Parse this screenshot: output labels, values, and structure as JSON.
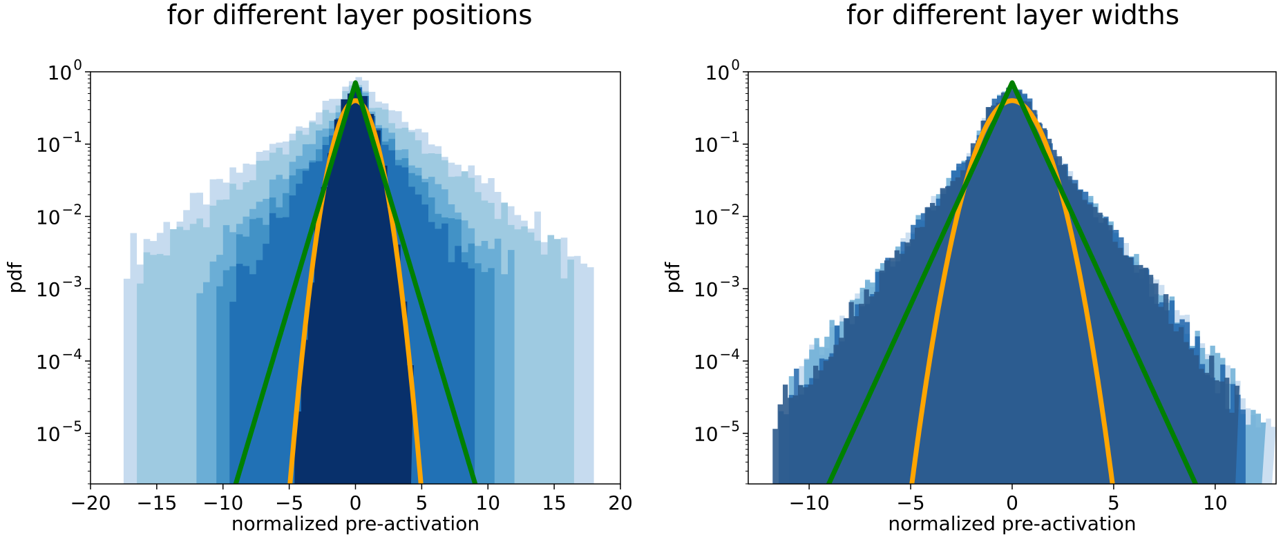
{
  "chart_data": [
    {
      "type": "histogram",
      "title": "for different layer positions",
      "xlabel": "normalized pre-activation",
      "ylabel": "pdf",
      "xlim": [
        -20,
        20
      ],
      "ylim_log10": [
        -5.7,
        0
      ],
      "yscale": "log",
      "xticks": [
        -20,
        -15,
        -10,
        -5,
        0,
        5,
        10,
        15,
        20
      ],
      "xtick_labels": [
        "−20",
        "−15",
        "−10",
        "−5",
        "0",
        "5",
        "10",
        "15",
        "20"
      ],
      "yticks_log10": [
        0,
        -1,
        -2,
        -3,
        -4,
        -5
      ],
      "ytick_labels": [
        {
          "base": "10",
          "exp": "0"
        },
        {
          "base": "10",
          "exp": "−1"
        },
        {
          "base": "10",
          "exp": "−2"
        },
        {
          "base": "10",
          "exp": "−3"
        },
        {
          "base": "10",
          "exp": "−4"
        },
        {
          "base": "10",
          "exp": "−5"
        }
      ],
      "histograms": [
        {
          "color": "#c6dbef",
          "opacity": 1,
          "range": [
            -17.5,
            18.0
          ],
          "scale": 3.3,
          "peak": 0.85
        },
        {
          "color": "#9ecae1",
          "opacity": 1,
          "range": [
            -16.5,
            16.5
          ],
          "scale": 3.0,
          "peak": 0.7
        },
        {
          "color": "#6baed6",
          "opacity": 1,
          "range": [
            -12.0,
            12.0
          ],
          "scale": 2.2,
          "peak": 0.6
        },
        {
          "color": "#4292c6",
          "opacity": 1,
          "range": [
            -10.5,
            10.5
          ],
          "scale": 1.9,
          "peak": 0.55
        },
        {
          "color": "#2171b5",
          "opacity": 1,
          "range": [
            -9.5,
            9.0
          ],
          "scale": 1.6,
          "peak": 0.55
        },
        {
          "color": "#08306b",
          "opacity": 1,
          "range": [
            -4.6,
            4.2
          ],
          "scale": 0.0,
          "peak": 0.5
        }
      ],
      "curves": [
        {
          "name": "",
          "kind": "gaussian",
          "color": "#ffa500",
          "sigma": 1.0
        },
        {
          "name": "",
          "kind": "laplace",
          "color": "#008000",
          "b": 0.707
        }
      ]
    },
    {
      "type": "histogram",
      "title": "for different layer widths",
      "xlabel": "normalized pre-activation",
      "ylabel": "pdf",
      "xlim": [
        -13,
        13
      ],
      "ylim_log10": [
        -5.7,
        0
      ],
      "yscale": "log",
      "xticks": [
        -10,
        -5,
        0,
        5,
        10
      ],
      "xtick_labels": [
        "−10",
        "−5",
        "0",
        "5",
        "10"
      ],
      "yticks_log10": [
        0,
        -1,
        -2,
        -3,
        -4,
        -5
      ],
      "ytick_labels": [
        {
          "base": "10",
          "exp": "0"
        },
        {
          "base": "10",
          "exp": "−1"
        },
        {
          "base": "10",
          "exp": "−2"
        },
        {
          "base": "10",
          "exp": "−3"
        },
        {
          "base": "10",
          "exp": "−4"
        },
        {
          "base": "10",
          "exp": "−5"
        }
      ],
      "histograms": [
        {
          "color": "#c6dbef",
          "opacity": 0.9,
          "range": [
            -10.5,
            12.8
          ],
          "scale": 1.25,
          "peak": 0.5
        },
        {
          "color": "#6baed6",
          "opacity": 0.85,
          "range": [
            -11.0,
            12.3
          ],
          "scale": 1.25,
          "peak": 0.5
        },
        {
          "color": "#2166ac",
          "opacity": 0.85,
          "range": [
            -11.5,
            11.5
          ],
          "scale": 1.2,
          "peak": 0.55
        },
        {
          "color": "#2c5a8c",
          "opacity": 0.9,
          "range": [
            -11.8,
            11.0
          ],
          "scale": 1.2,
          "peak": 0.55
        }
      ],
      "curves": [
        {
          "name": "",
          "kind": "gaussian",
          "color": "#ffa500",
          "sigma": 1.0
        },
        {
          "name": "",
          "kind": "laplace",
          "color": "#008000",
          "b": 0.707
        }
      ]
    }
  ]
}
